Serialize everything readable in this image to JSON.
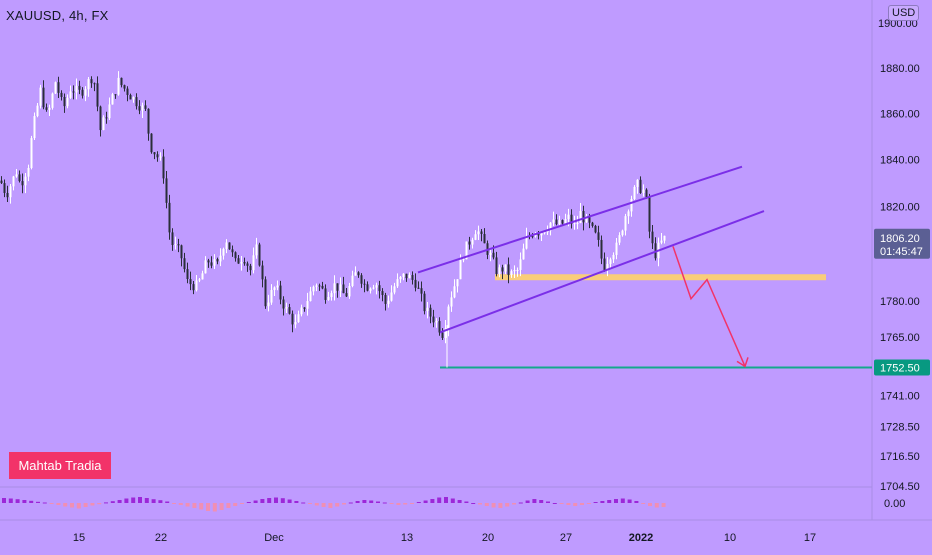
{
  "header": {
    "symbol": "XAUUSD, 4h, FX",
    "currency": "USD"
  },
  "watermark": {
    "text": "Mahtab Tradia"
  },
  "colors": {
    "background": "#bf9bff",
    "up": "#ffffff",
    "down": "#2a2e39",
    "channel": "#7b2fe8",
    "support": "#ffd36b",
    "target": "#14a88c",
    "arrow": "#f23369",
    "price_badge": "#5b5f94",
    "target_badge": "#089981",
    "osc_pos": "#9c27d8",
    "osc_neg": "#f08fb3"
  },
  "chart_data": {
    "type": "candlestick",
    "title": "XAUUSD, 4h, FX",
    "xlabel": "",
    "ylabel": "",
    "x_ticks": [
      "15",
      "22",
      "Dec",
      "13",
      "20",
      "27",
      "2022",
      "10",
      "17"
    ],
    "y_ticks": [
      "1880.00",
      "1860.00",
      "1840.00",
      "1820.00",
      "1780.00",
      "1765.00",
      "1741.00",
      "1728.50",
      "1716.50",
      "1704.50"
    ],
    "y_top_partial": "1900.00",
    "ylim": [
      1695,
      1902
    ],
    "scale": "log",
    "grid": false,
    "price_path": [
      [
        0,
        1831
      ],
      [
        6,
        1825
      ],
      [
        16,
        1835
      ],
      [
        20,
        1829
      ],
      [
        28,
        1838
      ],
      [
        32,
        1852
      ],
      [
        40,
        1870
      ],
      [
        47,
        1858
      ],
      [
        55,
        1874
      ],
      [
        63,
        1862
      ],
      [
        70,
        1871
      ],
      [
        80,
        1869
      ],
      [
        93,
        1877
      ],
      [
        100,
        1853
      ],
      [
        108,
        1862
      ],
      [
        118,
        1874
      ],
      [
        130,
        1868
      ],
      [
        145,
        1861
      ],
      [
        150,
        1846
      ],
      [
        162,
        1838
      ],
      [
        170,
        1805
      ],
      [
        180,
        1800
      ],
      [
        187,
        1788
      ],
      [
        197,
        1786
      ],
      [
        207,
        1797
      ],
      [
        217,
        1795
      ],
      [
        225,
        1807
      ],
      [
        235,
        1796
      ],
      [
        243,
        1799
      ],
      [
        250,
        1793
      ],
      [
        257,
        1803
      ],
      [
        265,
        1779
      ],
      [
        275,
        1786
      ],
      [
        285,
        1777
      ],
      [
        295,
        1770
      ],
      [
        305,
        1779
      ],
      [
        315,
        1788
      ],
      [
        325,
        1783
      ],
      [
        335,
        1787
      ],
      [
        345,
        1782
      ],
      [
        357,
        1793
      ],
      [
        365,
        1786
      ],
      [
        375,
        1788
      ],
      [
        385,
        1779
      ],
      [
        395,
        1787
      ],
      [
        405,
        1791
      ],
      [
        415,
        1788
      ],
      [
        425,
        1776
      ],
      [
        435,
        1772
      ],
      [
        443,
        1766
      ],
      [
        448,
        1779
      ],
      [
        455,
        1788
      ],
      [
        463,
        1800
      ],
      [
        470,
        1806
      ],
      [
        476,
        1811
      ],
      [
        482,
        1805
      ],
      [
        490,
        1799
      ],
      [
        497,
        1792
      ],
      [
        503,
        1794
      ],
      [
        510,
        1791
      ],
      [
        518,
        1793
      ],
      [
        526,
        1806
      ],
      [
        534,
        1810
      ],
      [
        540,
        1809
      ],
      [
        550,
        1813
      ],
      [
        560,
        1812
      ],
      [
        568,
        1815
      ],
      [
        575,
        1811
      ],
      [
        580,
        1817
      ],
      [
        590,
        1811
      ],
      [
        597,
        1806
      ],
      [
        603,
        1794
      ],
      [
        610,
        1800
      ],
      [
        617,
        1803
      ],
      [
        624,
        1815
      ],
      [
        630,
        1823
      ],
      [
        637,
        1829
      ],
      [
        645,
        1826
      ],
      [
        650,
        1805
      ],
      [
        655,
        1800
      ],
      [
        660,
        1804
      ],
      [
        664,
        1806.2
      ]
    ],
    "low_spike": {
      "x": 447,
      "value": 1752.5
    },
    "current_price": {
      "value": 1806.2,
      "label": "1806.20",
      "countdown": "01:45:47"
    },
    "target": {
      "value": 1752.5,
      "label": "1752.50"
    },
    "support_zone": {
      "value": 1790
    },
    "channel_upper": {
      "from": [
        418,
        1792
      ],
      "to": [
        742,
        1837
      ]
    },
    "channel_lower": {
      "from": [
        440,
        1767
      ],
      "to": [
        764,
        1818
      ]
    },
    "projection_arrow": [
      [
        673,
        1803
      ],
      [
        691,
        1781
      ],
      [
        707,
        1789
      ],
      [
        745,
        1753
      ]
    ],
    "oscillator": {
      "label": "0.00",
      "value_range": [
        -1,
        1
      ],
      "series": [
        0.5,
        0.45,
        0.38,
        0.3,
        0.22,
        0.12,
        0.05,
        -0.08,
        -0.2,
        -0.35,
        -0.45,
        -0.55,
        -0.4,
        -0.25,
        -0.12,
        0.06,
        0.18,
        0.3,
        0.45,
        0.55,
        0.6,
        0.5,
        0.38,
        0.28,
        0.15,
        -0.05,
        -0.2,
        -0.35,
        -0.5,
        -0.65,
        -0.8,
        -0.85,
        -0.7,
        -0.5,
        -0.3,
        -0.1,
        0.1,
        0.25,
        0.4,
        0.5,
        0.55,
        0.48,
        0.35,
        0.2,
        0.05,
        -0.1,
        -0.25,
        -0.4,
        -0.5,
        -0.35,
        -0.15,
        0.05,
        0.2,
        0.3,
        0.25,
        0.15,
        0.05,
        -0.1,
        -0.2,
        -0.15,
        -0.05,
        0.1,
        0.25,
        0.4,
        0.55,
        0.6,
        0.45,
        0.3,
        0.15,
        0.0,
        -0.15,
        -0.3,
        -0.45,
        -0.5,
        -0.35,
        -0.15,
        0.05,
        0.25,
        0.4,
        0.3,
        0.15,
        0.0,
        -0.1,
        -0.2,
        -0.3,
        -0.2,
        -0.05,
        0.1,
        0.2,
        0.3,
        0.4,
        0.45,
        0.35,
        0.2,
        -0.1,
        -0.3,
        -0.45,
        -0.4
      ]
    }
  }
}
